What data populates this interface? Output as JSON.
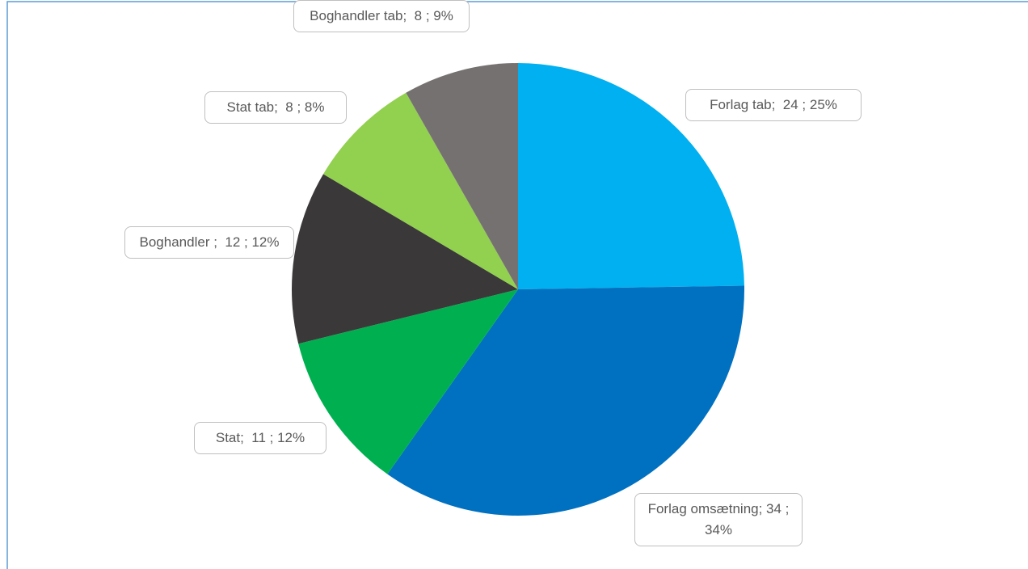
{
  "chart_data": {
    "type": "pie",
    "values": [
      24,
      34,
      11,
      12,
      8,
      8
    ],
    "value_labels": [
      "Forlag tab;  24 ; 25%",
      "Forlag omsætning; 34 ; 34%",
      "Stat;  11 ; 12%",
      "Boghandler ;  12 ; 12%",
      "Stat tab;  8 ; 8%",
      "Boghandler tab;  8 ; 9%"
    ],
    "colors": [
      "#00b0f0",
      "#0070c0",
      "#00b050",
      "#3a3838",
      "#92d050",
      "#767171"
    ]
  }
}
